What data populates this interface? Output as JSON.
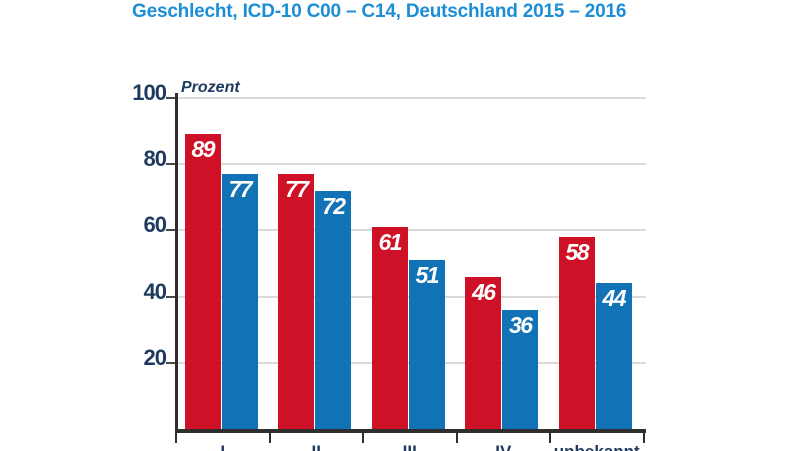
{
  "title": "Geschlecht, ICD-10 C00 – C14, Deutschland 2015 – 2016",
  "colors": {
    "title_blue": "#1b8ed6",
    "bar_red": "#ce1126",
    "bar_blue": "#1272b6",
    "axis_text": "#1e3a5f",
    "axis_line": "#2e2e2c",
    "gridline": "#dadada",
    "bar_label": "#ffffff"
  },
  "chart_data": {
    "type": "bar",
    "title": "Geschlecht, ICD-10 C00 – C14, Deutschland 2015 – 2016",
    "ylabel": "Prozent",
    "xlabel": "",
    "categories": [
      "I",
      "II",
      "III",
      "IV",
      "unbekannt"
    ],
    "series": [
      {
        "name": "red",
        "color": "#ce1126",
        "values": [
          89,
          77,
          61,
          46,
          58
        ]
      },
      {
        "name": "blue",
        "color": "#1272b6",
        "values": [
          77,
          72,
          51,
          36,
          44
        ]
      }
    ],
    "ylim": [
      0,
      100
    ],
    "yticks": [
      20,
      40,
      60,
      80,
      100
    ],
    "grid": true
  }
}
